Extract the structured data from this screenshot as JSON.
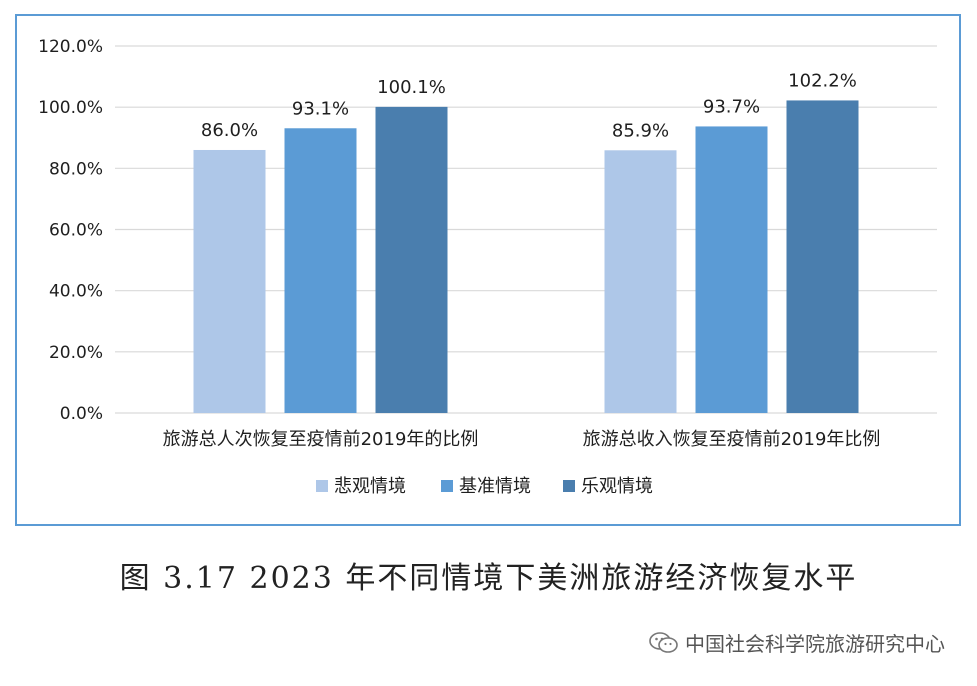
{
  "chart_data": {
    "type": "bar",
    "categories": [
      "旅游总人次恢复至疫情前2019年的比例",
      "旅游总收入恢复至疫情前2019年比例"
    ],
    "series": [
      {
        "name": "悲观情境",
        "values": [
          86.0,
          85.9
        ],
        "labels": [
          "86.0%",
          "85.9%"
        ],
        "color": "#aec7e8"
      },
      {
        "name": "基准情境",
        "values": [
          93.1,
          93.7
        ],
        "labels": [
          "93.1%",
          "93.7%"
        ],
        "color": "#5b9bd5"
      },
      {
        "name": "乐观情境",
        "values": [
          100.1,
          102.2
        ],
        "labels": [
          "100.1%",
          "102.2%"
        ],
        "color": "#4a7eae"
      }
    ],
    "yticks": [
      "0.0%",
      "20.0%",
      "40.0%",
      "60.0%",
      "80.0%",
      "100.0%",
      "120.0%"
    ],
    "ylim": [
      0,
      120
    ],
    "grid": true,
    "legend_position": "bottom"
  },
  "caption": "图 3.17 2023 年不同情境下美洲旅游经济恢复水平",
  "watermark": "中国社会科学院旅游研究中心",
  "colors": {
    "frame_border": "#5b9bd5",
    "gridline": "#d9d9d9"
  }
}
